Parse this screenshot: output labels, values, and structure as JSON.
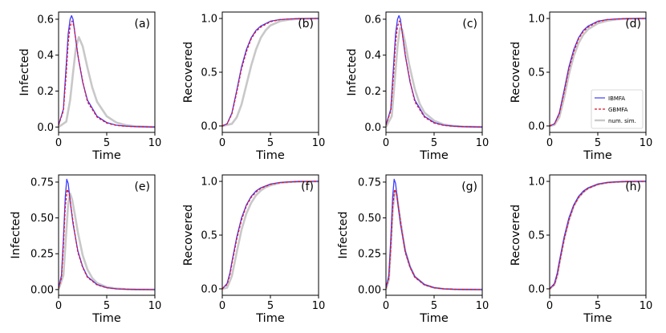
{
  "chart_data": [
    {
      "type": "line",
      "panel_label": "(a)",
      "xlabel": "Time",
      "ylabel": "Infected",
      "xlim": [
        0,
        10
      ],
      "ylim": [
        -0.03,
        0.64
      ],
      "xticks": [
        "0",
        "5",
        "10"
      ],
      "yticks": [
        "0.0",
        "0.2",
        "0.4",
        "0.6"
      ],
      "series": [
        {
          "name": "IBMFA",
          "color": "#3b3bff",
          "dash": "solid",
          "x": [
            0,
            0.5,
            0.8,
            1.0,
            1.2,
            1.35,
            1.5,
            1.7,
            2.0,
            2.5,
            3,
            4,
            5,
            6,
            7,
            8,
            10
          ],
          "y": [
            0.01,
            0.1,
            0.35,
            0.52,
            0.6,
            0.62,
            0.6,
            0.52,
            0.4,
            0.25,
            0.15,
            0.06,
            0.025,
            0.01,
            0.005,
            0.002,
            0.0
          ]
        },
        {
          "name": "GBMFA",
          "color": "#e8102a",
          "dash": "dashed",
          "x": [
            0,
            0.5,
            0.8,
            1.0,
            1.2,
            1.4,
            1.6,
            1.8,
            2.1,
            2.6,
            3,
            4,
            5,
            6,
            7,
            8,
            10
          ],
          "y": [
            0.01,
            0.09,
            0.3,
            0.47,
            0.56,
            0.59,
            0.56,
            0.48,
            0.37,
            0.23,
            0.14,
            0.055,
            0.022,
            0.009,
            0.004,
            0.002,
            0.0
          ]
        },
        {
          "name": "num. sim.",
          "color": "#c8c8c8",
          "dash": "solid",
          "x": [
            0,
            0.8,
            1.2,
            1.5,
            1.8,
            2.1,
            2.5,
            3,
            3.5,
            4,
            5,
            6,
            7,
            8,
            10
          ],
          "y": [
            0.0,
            0.03,
            0.15,
            0.3,
            0.44,
            0.5,
            0.45,
            0.33,
            0.22,
            0.14,
            0.06,
            0.025,
            0.01,
            0.004,
            0.0
          ]
        }
      ]
    },
    {
      "type": "line",
      "panel_label": "(b)",
      "xlabel": "Time",
      "ylabel": "Recovered",
      "xlim": [
        0,
        10
      ],
      "ylim": [
        -0.06,
        1.06
      ],
      "xticks": [
        "0",
        "5",
        "10"
      ],
      "yticks": [
        "0.0",
        "0.5",
        "1.0"
      ],
      "series": [
        {
          "name": "IBMFA",
          "color": "#3b3bff",
          "dash": "solid",
          "x": [
            0,
            0.5,
            1,
            1.5,
            2,
            2.5,
            3,
            3.5,
            4,
            5,
            6,
            7,
            8,
            10
          ],
          "y": [
            0,
            0.02,
            0.12,
            0.33,
            0.55,
            0.71,
            0.82,
            0.89,
            0.93,
            0.975,
            0.99,
            0.996,
            0.999,
            1.0
          ]
        },
        {
          "name": "GBMFA",
          "color": "#e8102a",
          "dash": "dashed",
          "x": [
            0,
            0.5,
            1,
            1.5,
            2,
            2.5,
            3,
            3.5,
            4,
            5,
            6,
            7,
            8,
            10
          ],
          "y": [
            0,
            0.02,
            0.11,
            0.31,
            0.53,
            0.69,
            0.81,
            0.88,
            0.92,
            0.97,
            0.99,
            0.996,
            0.999,
            1.0
          ]
        },
        {
          "name": "num. sim.",
          "color": "#c8c8c8",
          "dash": "solid",
          "x": [
            0,
            1,
            1.5,
            2,
            2.5,
            3,
            3.5,
            4,
            4.5,
            5,
            6,
            7,
            8,
            10
          ],
          "y": [
            0,
            0.02,
            0.08,
            0.2,
            0.38,
            0.56,
            0.71,
            0.82,
            0.89,
            0.935,
            0.975,
            0.99,
            0.997,
            1.0
          ]
        }
      ]
    },
    {
      "type": "line",
      "panel_label": "(c)",
      "xlabel": "Time",
      "ylabel": "Infected",
      "xlim": [
        0,
        10
      ],
      "ylim": [
        -0.03,
        0.64
      ],
      "xticks": [
        "0",
        "5",
        "10"
      ],
      "yticks": [
        "0.0",
        "0.2",
        "0.4",
        "0.6"
      ],
      "series": [
        {
          "name": "IBMFA",
          "color": "#3b3bff",
          "dash": "solid",
          "x": [
            0,
            0.5,
            0.8,
            1.0,
            1.2,
            1.35,
            1.5,
            1.7,
            2.0,
            2.5,
            3,
            4,
            5,
            6,
            7,
            8,
            10
          ],
          "y": [
            0.01,
            0.1,
            0.35,
            0.52,
            0.6,
            0.62,
            0.6,
            0.52,
            0.4,
            0.25,
            0.15,
            0.06,
            0.025,
            0.01,
            0.005,
            0.002,
            0.0
          ]
        },
        {
          "name": "GBMFA",
          "color": "#e8102a",
          "dash": "dashed",
          "x": [
            0,
            0.5,
            0.8,
            1.0,
            1.2,
            1.4,
            1.6,
            1.8,
            2.1,
            2.6,
            3,
            4,
            5,
            6,
            7,
            8,
            10
          ],
          "y": [
            0.01,
            0.09,
            0.3,
            0.47,
            0.56,
            0.59,
            0.56,
            0.48,
            0.37,
            0.23,
            0.14,
            0.055,
            0.022,
            0.009,
            0.004,
            0.002,
            0.0
          ]
        },
        {
          "name": "num. sim.",
          "color": "#c8c8c8",
          "dash": "solid",
          "x": [
            0,
            0.6,
            0.9,
            1.2,
            1.45,
            1.7,
            2.0,
            2.4,
            3,
            3.5,
            4,
            5,
            6,
            7,
            8,
            10
          ],
          "y": [
            0.0,
            0.06,
            0.25,
            0.45,
            0.55,
            0.54,
            0.47,
            0.35,
            0.21,
            0.13,
            0.08,
            0.035,
            0.014,
            0.006,
            0.002,
            0.0
          ]
        }
      ]
    },
    {
      "type": "line",
      "panel_label": "(d)",
      "xlabel": "Time",
      "ylabel": "Recovered",
      "xlim": [
        0,
        10
      ],
      "ylim": [
        -0.06,
        1.06
      ],
      "xticks": [
        "0",
        "5",
        "10"
      ],
      "yticks": [
        "0.0",
        "0.5",
        "1.0"
      ],
      "legend": {
        "placement": "center-right",
        "entries": [
          "IBMFA",
          "GBMFA",
          "num. sim."
        ]
      },
      "series": [
        {
          "name": "IBMFA",
          "color": "#3b3bff",
          "dash": "solid",
          "x": [
            0,
            0.5,
            1,
            1.5,
            2,
            2.5,
            3,
            3.5,
            4,
            5,
            6,
            7,
            8,
            10
          ],
          "y": [
            0,
            0.02,
            0.12,
            0.33,
            0.55,
            0.71,
            0.82,
            0.89,
            0.93,
            0.975,
            0.99,
            0.996,
            0.999,
            1.0
          ]
        },
        {
          "name": "GBMFA",
          "color": "#e8102a",
          "dash": "dashed",
          "x": [
            0,
            0.5,
            1,
            1.5,
            2,
            2.5,
            3,
            3.5,
            4,
            5,
            6,
            7,
            8,
            10
          ],
          "y": [
            0,
            0.02,
            0.11,
            0.31,
            0.53,
            0.69,
            0.81,
            0.88,
            0.92,
            0.97,
            0.99,
            0.996,
            0.999,
            1.0
          ]
        },
        {
          "name": "num. sim.",
          "color": "#c8c8c8",
          "dash": "solid",
          "x": [
            0,
            0.5,
            1,
            1.5,
            2,
            2.5,
            3,
            3.5,
            4,
            5,
            6,
            7,
            8,
            10
          ],
          "y": [
            0,
            0.01,
            0.08,
            0.26,
            0.48,
            0.65,
            0.77,
            0.85,
            0.9,
            0.955,
            0.98,
            0.992,
            0.997,
            1.0
          ]
        }
      ]
    },
    {
      "type": "line",
      "panel_label": "(e)",
      "xlabel": "Time",
      "ylabel": "Infected",
      "xlim": [
        0,
        10
      ],
      "ylim": [
        -0.04,
        0.8
      ],
      "xticks": [
        "0",
        "5",
        "10"
      ],
      "yticks": [
        "0.00",
        "0.25",
        "0.50",
        "0.75"
      ],
      "series": [
        {
          "name": "IBMFA",
          "color": "#3b3bff",
          "dash": "solid",
          "x": [
            0,
            0.3,
            0.5,
            0.7,
            0.85,
            1.0,
            1.2,
            1.5,
            2,
            2.5,
            3,
            4,
            5,
            6,
            7,
            8,
            10
          ],
          "y": [
            0.01,
            0.1,
            0.35,
            0.65,
            0.77,
            0.74,
            0.62,
            0.46,
            0.27,
            0.16,
            0.09,
            0.035,
            0.013,
            0.005,
            0.002,
            0.001,
            0.0
          ]
        },
        {
          "name": "GBMFA",
          "color": "#e8102a",
          "dash": "dashed",
          "x": [
            0,
            0.3,
            0.5,
            0.7,
            0.9,
            1.1,
            1.3,
            1.6,
            2,
            2.5,
            3,
            4,
            5,
            6,
            7,
            8,
            10
          ],
          "y": [
            0.01,
            0.08,
            0.3,
            0.58,
            0.7,
            0.67,
            0.57,
            0.43,
            0.26,
            0.155,
            0.085,
            0.032,
            0.012,
            0.005,
            0.002,
            0.001,
            0.0
          ]
        },
        {
          "name": "num. sim.",
          "color": "#c8c8c8",
          "dash": "solid",
          "x": [
            0,
            0.5,
            0.8,
            1.0,
            1.2,
            1.4,
            1.7,
            2.0,
            2.5,
            3,
            3.5,
            4,
            5,
            6,
            7,
            8,
            10
          ],
          "y": [
            0.0,
            0.1,
            0.4,
            0.6,
            0.67,
            0.63,
            0.52,
            0.4,
            0.24,
            0.14,
            0.08,
            0.045,
            0.017,
            0.007,
            0.003,
            0.001,
            0.0
          ]
        }
      ]
    },
    {
      "type": "line",
      "panel_label": "(f)",
      "xlabel": "Time",
      "ylabel": "Recovered",
      "xlim": [
        0,
        10
      ],
      "ylim": [
        -0.06,
        1.06
      ],
      "xticks": [
        "0",
        "5",
        "10"
      ],
      "yticks": [
        "0.0",
        "0.5",
        "1.0"
      ],
      "series": [
        {
          "name": "IBMFA",
          "color": "#3b3bff",
          "dash": "solid",
          "x": [
            0,
            0.5,
            0.8,
            1,
            1.5,
            2,
            2.5,
            3,
            3.5,
            4,
            5,
            6,
            7,
            8,
            10
          ],
          "y": [
            0,
            0.05,
            0.15,
            0.25,
            0.48,
            0.66,
            0.78,
            0.86,
            0.91,
            0.94,
            0.975,
            0.99,
            0.996,
            0.999,
            1.0
          ]
        },
        {
          "name": "GBMFA",
          "color": "#e8102a",
          "dash": "dashed",
          "x": [
            0,
            0.5,
            0.8,
            1,
            1.5,
            2,
            2.5,
            3,
            3.5,
            4,
            5,
            6,
            7,
            8,
            10
          ],
          "y": [
            0,
            0.04,
            0.13,
            0.23,
            0.46,
            0.64,
            0.77,
            0.85,
            0.9,
            0.935,
            0.972,
            0.988,
            0.995,
            0.998,
            1.0
          ]
        },
        {
          "name": "num. sim.",
          "color": "#c8c8c8",
          "dash": "solid",
          "x": [
            0,
            0.5,
            1,
            1.5,
            2,
            2.5,
            3,
            3.5,
            4,
            4.5,
            5,
            6,
            7,
            8,
            10
          ],
          "y": [
            0,
            0.01,
            0.12,
            0.34,
            0.55,
            0.7,
            0.8,
            0.87,
            0.915,
            0.945,
            0.963,
            0.985,
            0.994,
            0.998,
            1.0
          ]
        }
      ]
    },
    {
      "type": "line",
      "panel_label": "(g)",
      "xlabel": "Time",
      "ylabel": "Infected",
      "xlim": [
        0,
        10
      ],
      "ylim": [
        -0.04,
        0.8
      ],
      "xticks": [
        "0",
        "5",
        "10"
      ],
      "yticks": [
        "0.00",
        "0.25",
        "0.50",
        "0.75"
      ],
      "series": [
        {
          "name": "IBMFA",
          "color": "#3b3bff",
          "dash": "solid",
          "x": [
            0,
            0.3,
            0.5,
            0.7,
            0.85,
            1.0,
            1.2,
            1.5,
            2,
            2.5,
            3,
            4,
            5,
            6,
            7,
            8,
            10
          ],
          "y": [
            0.01,
            0.1,
            0.35,
            0.65,
            0.77,
            0.74,
            0.62,
            0.46,
            0.27,
            0.16,
            0.09,
            0.035,
            0.013,
            0.005,
            0.002,
            0.001,
            0.0
          ]
        },
        {
          "name": "GBMFA",
          "color": "#e8102a",
          "dash": "dashed",
          "x": [
            0,
            0.3,
            0.5,
            0.7,
            0.9,
            1.1,
            1.3,
            1.6,
            2,
            2.5,
            3,
            4,
            5,
            6,
            7,
            8,
            10
          ],
          "y": [
            0.01,
            0.08,
            0.3,
            0.58,
            0.7,
            0.67,
            0.57,
            0.43,
            0.26,
            0.155,
            0.085,
            0.032,
            0.012,
            0.005,
            0.002,
            0.001,
            0.0
          ]
        },
        {
          "name": "num. sim.",
          "color": "#c8c8c8",
          "dash": "solid",
          "x": [
            0,
            0.3,
            0.5,
            0.7,
            0.9,
            1.1,
            1.3,
            1.6,
            2,
            2.5,
            3,
            4,
            5,
            6,
            7,
            8,
            10
          ],
          "y": [
            0.0,
            0.07,
            0.28,
            0.55,
            0.68,
            0.67,
            0.58,
            0.44,
            0.27,
            0.16,
            0.09,
            0.034,
            0.013,
            0.005,
            0.002,
            0.001,
            0.0
          ]
        }
      ]
    },
    {
      "type": "line",
      "panel_label": "(h)",
      "xlabel": "Time",
      "ylabel": "Recovered",
      "xlim": [
        0,
        10
      ],
      "ylim": [
        -0.06,
        1.06
      ],
      "xticks": [
        "0",
        "5",
        "10"
      ],
      "yticks": [
        "0.0",
        "0.5",
        "1.0"
      ],
      "series": [
        {
          "name": "IBMFA",
          "color": "#3b3bff",
          "dash": "solid",
          "x": [
            0,
            0.5,
            0.8,
            1,
            1.5,
            2,
            2.5,
            3,
            3.5,
            4,
            5,
            6,
            7,
            8,
            10
          ],
          "y": [
            0,
            0.05,
            0.15,
            0.25,
            0.48,
            0.66,
            0.78,
            0.86,
            0.91,
            0.94,
            0.975,
            0.99,
            0.996,
            0.999,
            1.0
          ]
        },
        {
          "name": "GBMFA",
          "color": "#e8102a",
          "dash": "dashed",
          "x": [
            0,
            0.5,
            0.8,
            1,
            1.5,
            2,
            2.5,
            3,
            3.5,
            4,
            5,
            6,
            7,
            8,
            10
          ],
          "y": [
            0,
            0.04,
            0.13,
            0.23,
            0.46,
            0.64,
            0.77,
            0.85,
            0.9,
            0.935,
            0.972,
            0.988,
            0.995,
            0.998,
            1.0
          ]
        },
        {
          "name": "num. sim.",
          "color": "#c8c8c8",
          "dash": "solid",
          "x": [
            0,
            0.5,
            0.8,
            1,
            1.5,
            2,
            2.5,
            3,
            3.5,
            4,
            5,
            6,
            7,
            8,
            10
          ],
          "y": [
            0,
            0.04,
            0.13,
            0.23,
            0.46,
            0.64,
            0.77,
            0.85,
            0.9,
            0.935,
            0.972,
            0.988,
            0.995,
            0.998,
            1.0
          ]
        }
      ]
    }
  ]
}
